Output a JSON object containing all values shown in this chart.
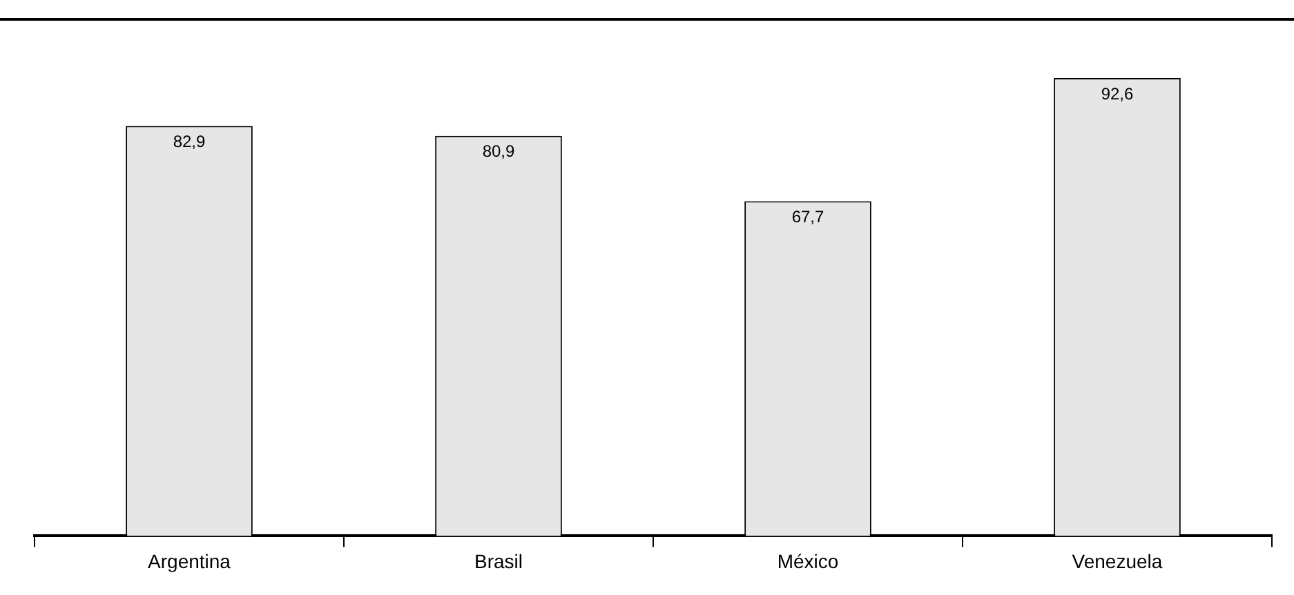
{
  "chart_data": {
    "type": "bar",
    "categories": [
      "Argentina",
      "Brasil",
      "México",
      "Venezuela"
    ],
    "values": [
      82.9,
      80.9,
      67.7,
      92.6
    ],
    "value_labels": [
      "82,9",
      "80,9",
      "67,7",
      "92,6"
    ],
    "color": "#e6e6e6",
    "grid": false,
    "legend": false,
    "tick_labels": "x"
  }
}
